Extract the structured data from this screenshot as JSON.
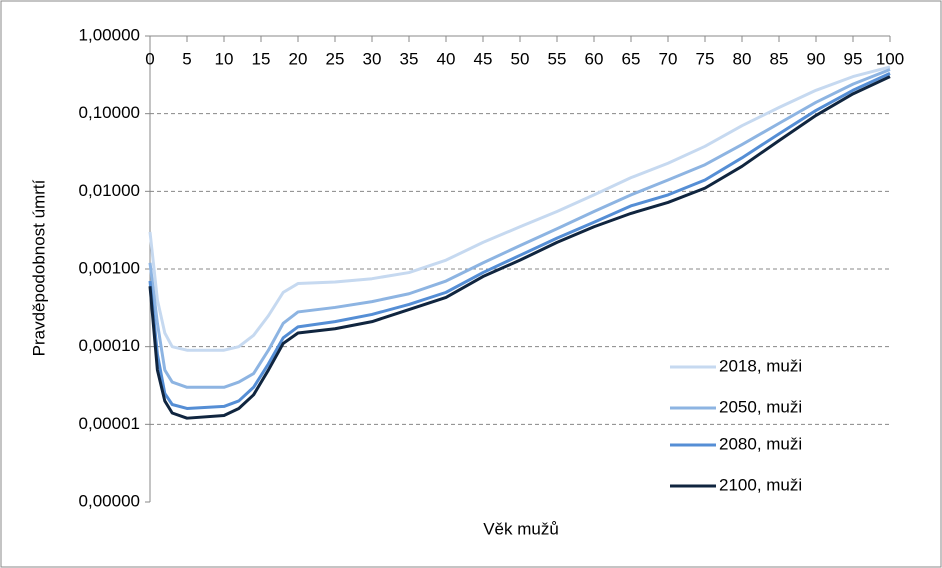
{
  "chart_data": {
    "type": "line",
    "x_label": "Věk mužů",
    "y_label": "Pravděpodobnost úmrtí",
    "x": [
      0,
      1,
      2,
      3,
      5,
      10,
      12,
      14,
      16,
      18,
      20,
      25,
      30,
      35,
      40,
      45,
      50,
      55,
      60,
      65,
      70,
      75,
      80,
      85,
      90,
      95,
      100
    ],
    "series": [
      {
        "name": "2018, muži",
        "color": "#c6d9f0",
        "values": [
          0.003,
          0.0004,
          0.00015,
          0.0001,
          9e-05,
          9e-05,
          0.0001,
          0.00014,
          0.00025,
          0.0005,
          0.00065,
          0.00068,
          0.00075,
          0.0009,
          0.0013,
          0.0022,
          0.0035,
          0.0055,
          0.009,
          0.015,
          0.023,
          0.038,
          0.07,
          0.12,
          0.2,
          0.3,
          0.4
        ]
      },
      {
        "name": "2050, muži",
        "color": "#8db4e2",
        "values": [
          0.0012,
          0.0002,
          5e-05,
          3.5e-05,
          3e-05,
          3e-05,
          3.5e-05,
          4.5e-05,
          9e-05,
          0.0002,
          0.00028,
          0.00032,
          0.00038,
          0.00048,
          0.0007,
          0.0012,
          0.002,
          0.0033,
          0.0055,
          0.009,
          0.014,
          0.022,
          0.04,
          0.075,
          0.14,
          0.24,
          0.37
        ]
      },
      {
        "name": "2080, muži",
        "color": "#558ed5",
        "values": [
          0.0007,
          8e-05,
          2.5e-05,
          1.8e-05,
          1.6e-05,
          1.7e-05,
          2e-05,
          3e-05,
          6e-05,
          0.00013,
          0.00018,
          0.00021,
          0.00026,
          0.00035,
          0.0005,
          0.0009,
          0.0015,
          0.0025,
          0.004,
          0.0065,
          0.009,
          0.014,
          0.027,
          0.055,
          0.11,
          0.2,
          0.33
        ]
      },
      {
        "name": "2100, muži",
        "color": "#10253f",
        "values": [
          0.0006,
          5e-05,
          2e-05,
          1.4e-05,
          1.2e-05,
          1.3e-05,
          1.6e-05,
          2.4e-05,
          5e-05,
          0.00011,
          0.00015,
          0.00017,
          0.00021,
          0.0003,
          0.00043,
          0.0008,
          0.0013,
          0.0022,
          0.0035,
          0.0052,
          0.0072,
          0.011,
          0.021,
          0.045,
          0.095,
          0.18,
          0.3
        ]
      }
    ],
    "xlim": [
      0,
      100
    ],
    "xticks": [
      0,
      5,
      10,
      15,
      20,
      25,
      30,
      35,
      40,
      45,
      50,
      55,
      60,
      65,
      70,
      75,
      80,
      85,
      90,
      95,
      100
    ],
    "ylim": [
      1e-06,
      1
    ],
    "log": true,
    "grid": true,
    "legend": "lower right",
    "yticks": [
      {
        "value": 1,
        "label": "1,00000"
      },
      {
        "value": 0.1,
        "label": "0,10000"
      },
      {
        "value": 0.01,
        "label": "0,01000"
      },
      {
        "value": 0.001,
        "label": "0,00100"
      },
      {
        "value": 0.0001,
        "label": "0,00010"
      },
      {
        "value": 1e-05,
        "label": "0,00001"
      },
      {
        "value": 1e-06,
        "label": "0,00000"
      }
    ]
  }
}
